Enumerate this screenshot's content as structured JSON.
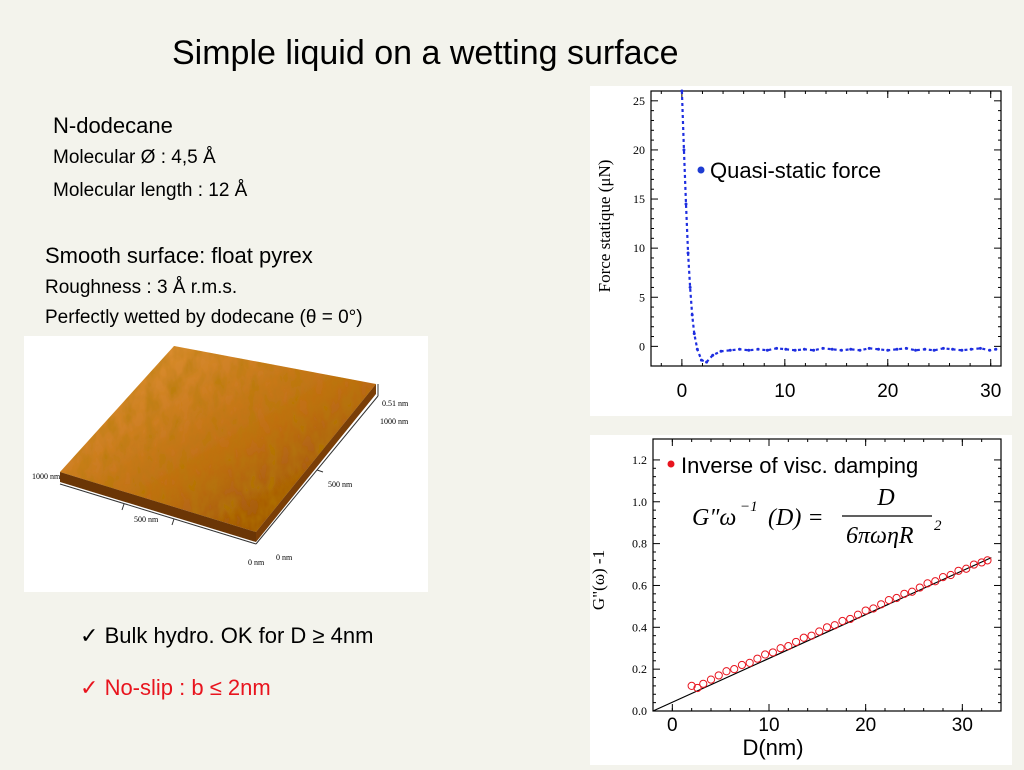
{
  "slide": {
    "title": "Simple liquid on a wetting surface",
    "liquid": {
      "name": "N-dodecane",
      "diameter": "Molecular Ø : 4,5 Å",
      "length": "Molecular length : 12 Å"
    },
    "surface": {
      "name": "Smooth surface: float pyrex",
      "roughness": "Roughness : 3 Å r.m.s.",
      "wetting": "Perfectly wetted by dodecane (θ = 0°)"
    },
    "afm_image": {
      "labels": [
        "0.51 nm",
        "1000 nm",
        "1000 nm",
        "500 nm",
        "500 nm",
        "0 nm",
        "0 nm"
      ],
      "colors": {
        "surface": "#c06f17",
        "highlight": "#e59a3a",
        "shadow": "#8a4808"
      }
    },
    "conclusions": [
      {
        "text": "Bulk hydro. OK for  D ≥ 4nm",
        "color": "#000000"
      },
      {
        "text": "No-slip : b ≤ 2nm",
        "color": "#e8141e"
      }
    ]
  },
  "chart_data": [
    {
      "type": "scatter",
      "ylabel": "Force statique  (μN)",
      "legend": "Quasi-static force",
      "legend_bullet_color": "#1e3cd2",
      "series_color": "#1e2ee0",
      "xlim": [
        -3,
        31
      ],
      "ylim": [
        -2,
        26
      ],
      "yticks": [
        0,
        5,
        10,
        15,
        20,
        25
      ],
      "xticks": [
        0,
        10,
        20,
        30
      ],
      "series": [
        {
          "x": [
            0.0,
            0.2,
            0.4,
            0.6,
            0.8,
            1.0,
            1.2,
            1.5,
            1.9,
            2.4,
            3.0,
            3.8,
            4.7,
            5.6,
            6.5,
            7.4,
            8.3,
            9.2,
            10.1,
            11.0,
            11.9,
            12.8,
            13.7,
            14.6,
            15.5,
            16.4,
            17.3,
            18.2,
            19.1,
            20.0,
            20.9,
            21.8,
            22.7,
            23.6,
            24.5,
            25.4,
            26.3,
            27.2,
            28.1,
            29.0,
            29.9,
            30.5
          ],
          "y": [
            26.0,
            20.0,
            14.5,
            9.5,
            6.0,
            3.2,
            1.3,
            -0.3,
            -1.4,
            -1.6,
            -0.9,
            -0.5,
            -0.4,
            -0.3,
            -0.4,
            -0.3,
            -0.4,
            -0.2,
            -0.3,
            -0.4,
            -0.3,
            -0.4,
            -0.2,
            -0.3,
            -0.4,
            -0.3,
            -0.4,
            -0.2,
            -0.3,
            -0.4,
            -0.3,
            -0.2,
            -0.4,
            -0.3,
            -0.4,
            -0.2,
            -0.3,
            -0.4,
            -0.3,
            -0.2,
            -0.4,
            -0.3
          ]
        }
      ]
    },
    {
      "type": "scatter",
      "ylabel": "G\"(ω) -1",
      "xlabel": "D(nm)",
      "legend": "Inverse of visc. damping",
      "legend_bullet_color": "#e8141e",
      "formula": {
        "lhs": "G″ω",
        "sup": "−1",
        "arg": "(D) =",
        "num": "D",
        "den": "6πωηR",
        "den_sup": "2"
      },
      "series_color": "#e8141e",
      "fit_color": "#000000",
      "xlim": [
        -2,
        34
      ],
      "ylim": [
        0,
        1.3
      ],
      "yticks": [
        0.0,
        0.2,
        0.4,
        0.6,
        0.8,
        1.0,
        1.2
      ],
      "xticks": [
        0,
        10,
        20,
        30
      ],
      "fit": {
        "x": [
          -2,
          33
        ],
        "y": [
          0.0,
          0.733
        ]
      },
      "series": [
        {
          "x": [
            2.0,
            2.6,
            3.2,
            4.0,
            4.8,
            5.6,
            6.4,
            7.2,
            8.0,
            8.8,
            9.6,
            10.4,
            11.2,
            12.0,
            12.8,
            13.6,
            14.4,
            15.2,
            16.0,
            16.8,
            17.6,
            18.4,
            19.2,
            20.0,
            20.8,
            21.6,
            22.4,
            23.2,
            24.0,
            24.8,
            25.6,
            26.4,
            27.2,
            28.0,
            28.8,
            29.6,
            30.4,
            31.2,
            32.0,
            32.6
          ],
          "y": [
            0.12,
            0.11,
            0.13,
            0.15,
            0.17,
            0.19,
            0.2,
            0.22,
            0.23,
            0.25,
            0.27,
            0.28,
            0.3,
            0.31,
            0.33,
            0.35,
            0.36,
            0.38,
            0.4,
            0.41,
            0.43,
            0.44,
            0.46,
            0.48,
            0.49,
            0.51,
            0.53,
            0.54,
            0.56,
            0.57,
            0.59,
            0.61,
            0.62,
            0.64,
            0.65,
            0.67,
            0.68,
            0.7,
            0.71,
            0.72
          ]
        }
      ]
    }
  ]
}
